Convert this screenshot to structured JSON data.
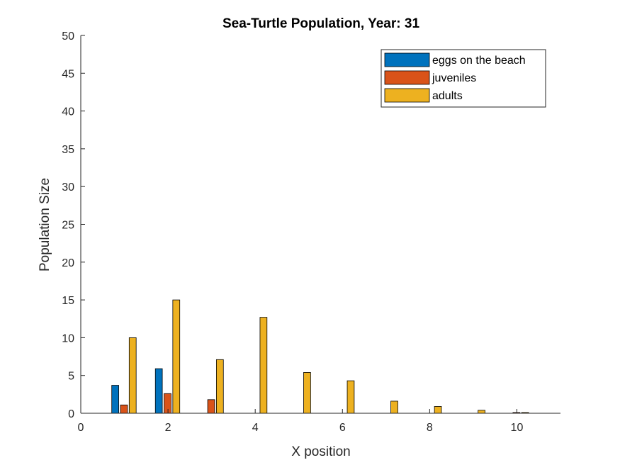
{
  "chart_data": {
    "type": "bar",
    "title": "Sea-Turtle Population, Year: 31",
    "xlabel": "X position",
    "ylabel": "Population Size",
    "xlim": [
      0,
      11
    ],
    "ylim": [
      0,
      50
    ],
    "xticks": [
      0,
      2,
      4,
      6,
      8,
      10
    ],
    "yticks": [
      0,
      5,
      10,
      15,
      20,
      25,
      30,
      35,
      40,
      45,
      50
    ],
    "x": [
      1,
      2,
      3,
      4,
      5,
      6,
      7,
      8,
      9,
      10
    ],
    "series": [
      {
        "name": "eggs on the beach",
        "color": "#0072BD",
        "values": [
          3.7,
          5.9,
          0,
          0,
          0,
          0,
          0,
          0,
          0,
          0
        ]
      },
      {
        "name": "juveniles",
        "color": "#D95319",
        "values": [
          1.1,
          2.6,
          1.8,
          0,
          0,
          0,
          0,
          0,
          0,
          0.1
        ]
      },
      {
        "name": "adults",
        "color": "#EDB120",
        "values": [
          10.0,
          15.0,
          7.1,
          12.7,
          5.4,
          4.3,
          1.6,
          0.9,
          0.4,
          0.1
        ]
      }
    ],
    "grid": false,
    "legend_position": "top-right"
  }
}
